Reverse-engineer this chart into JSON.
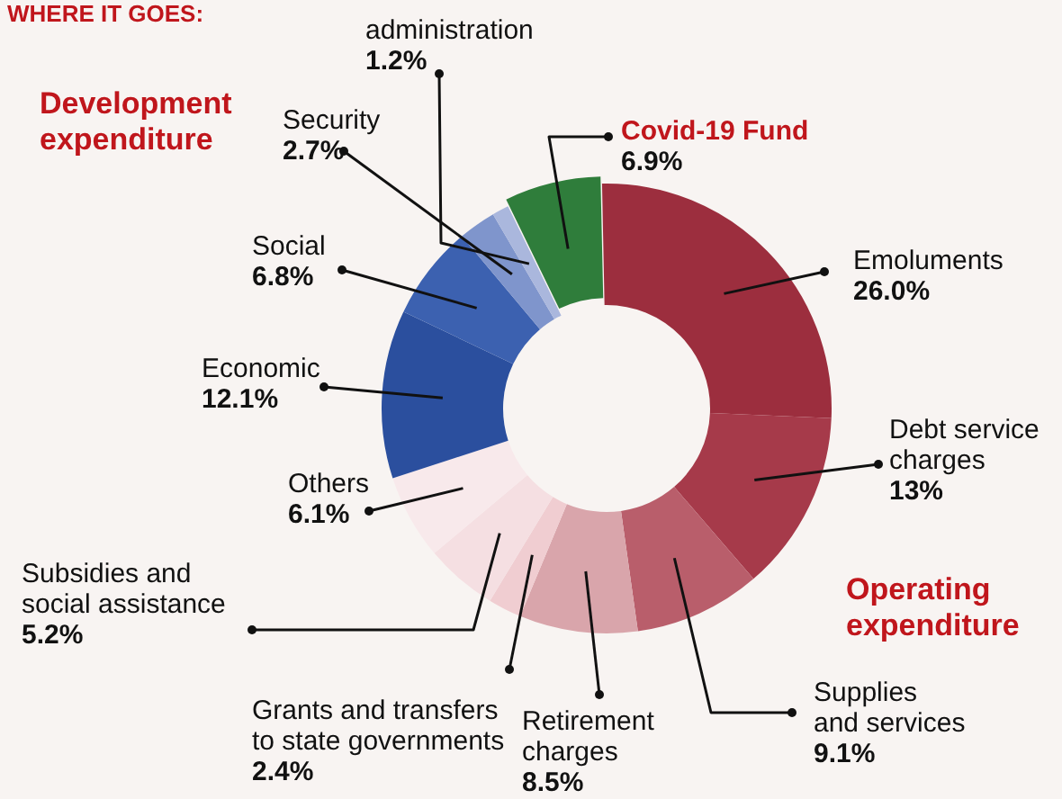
{
  "chart_data": {
    "type": "donut",
    "title": "WHERE IT GOES:",
    "categories": [
      "Covid-19 Fund",
      "Emoluments",
      "Debt service charges",
      "Supplies and services",
      "Retirement charges",
      "Grants and transfers to state governments",
      "Subsidies and social assistance",
      "Others",
      "Economic",
      "Social",
      "Security",
      "administration"
    ],
    "values": [
      6.9,
      26.0,
      13,
      9.1,
      8.5,
      2.4,
      5.2,
      6.1,
      12.1,
      6.8,
      2.7,
      1.2
    ],
    "value_labels": [
      "6.9%",
      "26.0%",
      "13%",
      "9.1%",
      "8.5%",
      "2.4%",
      "5.2%",
      "6.1%",
      "12.1%",
      "6.8%",
      "2.7%",
      "1.2%"
    ],
    "colors": [
      "#2f7d3b",
      "#9c2e3e",
      "#a63a4a",
      "#b95e6b",
      "#d9a5ab",
      "#f0cdd1",
      "#f5dfe2",
      "#f8e9eb",
      "#2b4f9e",
      "#3c61b0",
      "#7f95cc",
      "#aab7dd"
    ],
    "annotations": [
      "Development expenditure",
      "Operating expenditure"
    ],
    "legend": false
  }
}
